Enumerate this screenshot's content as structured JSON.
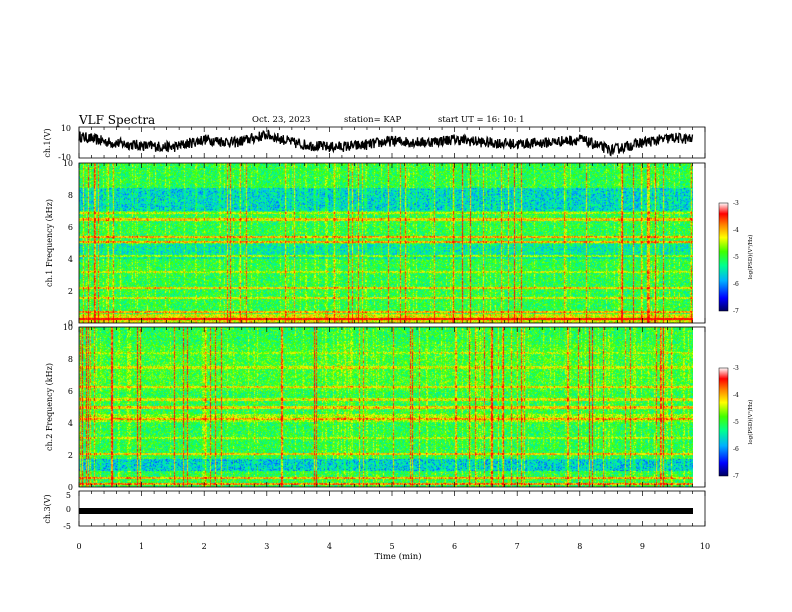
{
  "header": {
    "title": "VLF Spectra",
    "date": "Oct. 23, 2023",
    "station": "station= KAP",
    "start": "start  UT =   16: 10: 1"
  },
  "colors": {
    "spectrogram_scale": [
      "#000080",
      "#0000ff",
      "#00c0ff",
      "#00ff80",
      "#40ff00",
      "#ffff00",
      "#ff8000",
      "#ff0000",
      "#ffffff"
    ],
    "trace": "#000000"
  },
  "chart_data": [
    {
      "type": "line",
      "panel": "ch1-waveform",
      "ylabel": "ch.1(V)",
      "ylim": [
        -10,
        10
      ],
      "yticks": [
        "10",
        "-10"
      ],
      "xlim": [
        0,
        10
      ],
      "description_of_series": "noisy voltage trace oscillating roughly between -8 and 8 V",
      "x": [
        0,
        0.5,
        1,
        1.5,
        2,
        2.5,
        3,
        3.5,
        4,
        4.5,
        5,
        5.5,
        6,
        6.5,
        7,
        7.5,
        8,
        8.5,
        9,
        9.5,
        9.8
      ],
      "y": [
        4,
        0,
        -2,
        -3,
        2,
        0,
        5,
        -1,
        -3,
        -2,
        1,
        0,
        2,
        0,
        -1,
        0,
        2,
        -5,
        0,
        3,
        2
      ]
    },
    {
      "type": "heatmap",
      "panel": "ch1-spectrogram",
      "ylabel": "ch.1 Frequency (kHz)",
      "ylim": [
        0,
        10
      ],
      "yticks": [
        "0",
        "2",
        "4",
        "6",
        "8",
        "10"
      ],
      "xlim": [
        0,
        9.8
      ],
      "colorbar": {
        "label": "log(PSD)(V²/Hz)",
        "ticks": [
          "-3",
          "-4",
          "-5",
          "-6",
          "-7"
        ],
        "range": [
          -7,
          -3
        ]
      }
    },
    {
      "type": "heatmap",
      "panel": "ch2-spectrogram",
      "ylabel": "ch.2 Frequency (kHz)",
      "ylim": [
        0,
        10
      ],
      "yticks": [
        "0",
        "2",
        "4",
        "6",
        "8",
        "10"
      ],
      "xlim": [
        0,
        9.8
      ],
      "colorbar": {
        "label": "log(PSD)(V²/Hz)",
        "ticks": [
          "-3",
          "-4",
          "-5",
          "-6",
          "-7"
        ],
        "range": [
          -7,
          -3
        ]
      }
    },
    {
      "type": "line",
      "panel": "ch3-waveform",
      "ylabel": "ch.3(V)",
      "ylim": [
        -5,
        5
      ],
      "yticks": [
        "5",
        "0",
        "-5"
      ],
      "xlim": [
        0,
        10
      ],
      "x": [
        0,
        9.8
      ],
      "y": [
        0,
        0
      ]
    }
  ],
  "xaxis": {
    "label": "Time (min)",
    "ticks": [
      "0",
      "1",
      "2",
      "3",
      "4",
      "5",
      "6",
      "7",
      "8",
      "9",
      "10"
    ],
    "range": [
      0,
      10
    ]
  }
}
